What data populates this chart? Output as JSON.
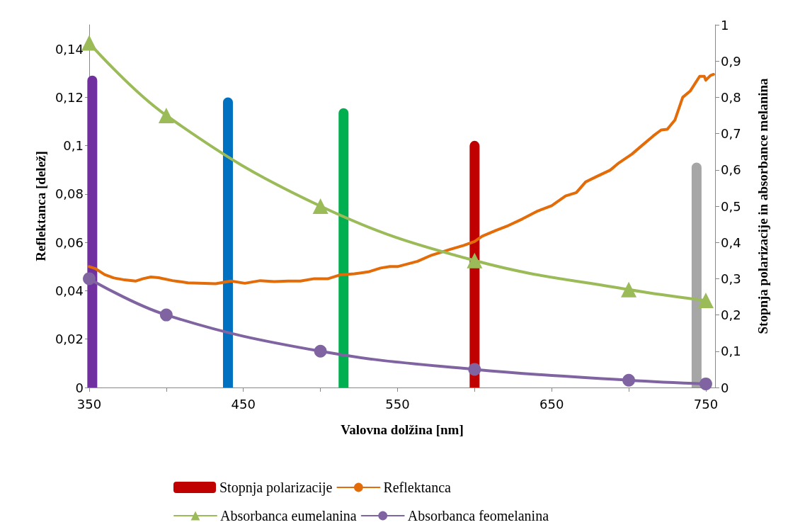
{
  "chart_data": {
    "type": "line",
    "xlabel": "Valovna dolžina [nm]",
    "ylabel": "Reflektanca [delež]",
    "y2label": "Stopnja polarizacije in absorbance melanina",
    "xlim": [
      350,
      756
    ],
    "xticks": [
      350,
      {
        "value": 400,
        "label": null
      },
      450,
      {
        "value": 500,
        "label": null
      },
      550,
      {
        "value": 600,
        "label": null
      },
      650,
      {
        "value": 700,
        "label": null
      },
      750
    ],
    "ylim": [
      0,
      0.15
    ],
    "yticks": [
      {
        "value": 0,
        "label": "0"
      },
      {
        "value": 0.02,
        "label": "0,02"
      },
      {
        "value": 0.04,
        "label": "0,04"
      },
      {
        "value": 0.06,
        "label": "0,06"
      },
      {
        "value": 0.08,
        "label": "0,08"
      },
      {
        "value": 0.1,
        "label": "0,1"
      },
      {
        "value": 0.12,
        "label": "0,12"
      },
      {
        "value": 0.14,
        "label": "0,14"
      }
    ],
    "y2lim": [
      0,
      1
    ],
    "y2ticks": [
      {
        "value": 0,
        "label": "0"
      },
      {
        "value": 0.1,
        "label": "0,1"
      },
      {
        "value": 0.2,
        "label": "0,2"
      },
      {
        "value": 0.3,
        "label": "0,3"
      },
      {
        "value": 0.4,
        "label": "0,4"
      },
      {
        "value": 0.5,
        "label": "0,5"
      },
      {
        "value": 0.6,
        "label": "0,6"
      },
      {
        "value": 0.7,
        "label": "0,7"
      },
      {
        "value": 0.8,
        "label": "0,8"
      },
      {
        "value": 0.9,
        "label": "0,9"
      },
      {
        "value": 1,
        "label": "1"
      }
    ],
    "grid": false,
    "legend": "bottom",
    "series": [
      {
        "name": "Stopnja polarizacije",
        "type": "bar",
        "axis": "y2",
        "color": "#c00000",
        "x": [
          352,
          440,
          515,
          600,
          744
        ],
        "values": [
          0.86,
          0.8,
          0.77,
          0.68,
          0.62
        ],
        "colors": [
          "#7030a0",
          "#0070c0",
          "#00b050",
          "#c00000",
          "#a6a6a6"
        ]
      },
      {
        "name": "Reflektanca",
        "axis": "y",
        "color": "#e36c09",
        "marker": "none",
        "x": [
          350,
          354,
          360,
          366,
          373,
          380,
          385,
          390,
          395,
          404,
          414,
          425,
          432,
          442,
          451,
          461,
          470,
          479,
          487,
          496,
          505,
          513,
          522,
          531,
          539,
          545,
          550,
          563,
          572,
          584,
          593,
          600,
          605,
          614,
          622,
          631,
          641,
          650,
          659,
          666,
          672,
          679,
          688,
          693,
          702,
          709,
          716,
          721,
          725,
          730,
          735,
          740,
          746,
          749,
          750,
          753,
          755
        ],
        "values": [
          0.05,
          0.0492,
          0.0467,
          0.0453,
          0.0445,
          0.044,
          0.045,
          0.0457,
          0.0454,
          0.0442,
          0.0433,
          0.0431,
          0.0429,
          0.044,
          0.0431,
          0.0442,
          0.0438,
          0.044,
          0.044,
          0.045,
          0.045,
          0.0466,
          0.047,
          0.0478,
          0.0494,
          0.05,
          0.05,
          0.0522,
          0.0547,
          0.0571,
          0.0588,
          0.0604,
          0.0626,
          0.065,
          0.067,
          0.0697,
          0.073,
          0.0752,
          0.0792,
          0.0806,
          0.085,
          0.0872,
          0.0899,
          0.0926,
          0.0965,
          0.1003,
          0.1041,
          0.1065,
          0.1068,
          0.1107,
          0.12,
          0.1227,
          0.1287,
          0.1287,
          0.1271,
          0.129,
          0.1295
        ]
      },
      {
        "name": "Absorbanca eumelanina",
        "axis": "y2",
        "color": "#9bbb59",
        "marker": "triangle",
        "x": [
          350,
          400,
          500,
          600,
          700,
          750
        ],
        "values": [
          0.95,
          0.75,
          0.5,
          0.35,
          0.27,
          0.24
        ]
      },
      {
        "name": "Absorbanca feomelanina",
        "axis": "y2",
        "color": "#8064a2",
        "marker": "circle",
        "x": [
          350,
          400,
          500,
          600,
          700,
          750
        ],
        "values": [
          0.3,
          0.2,
          0.1,
          0.05,
          0.02,
          0.01
        ]
      }
    ]
  }
}
